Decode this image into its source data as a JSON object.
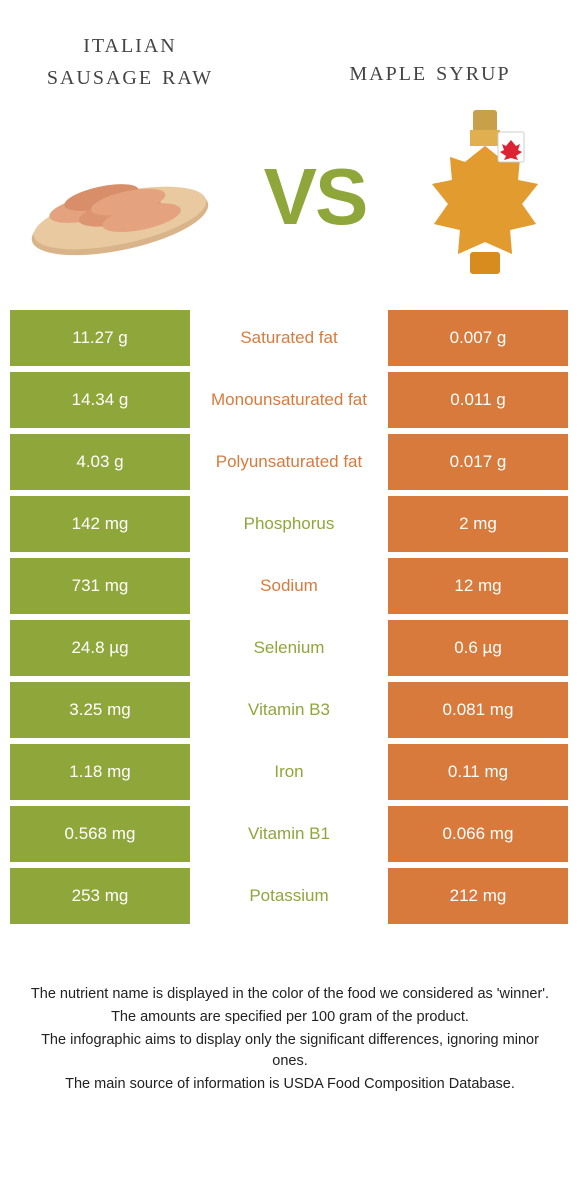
{
  "colors": {
    "leftFood": "#8fa63b",
    "rightFood": "#d87a3c",
    "vs": "#8fa63b",
    "text": "#333333",
    "footnote": "#222222",
    "background": "#ffffff"
  },
  "leftFood": {
    "title": "italian sausage raw"
  },
  "rightFood": {
    "title": "maple syrup"
  },
  "vsLabel": "VS",
  "rows": [
    {
      "left": "11.27 g",
      "name": "Saturated fat",
      "right": "0.007 g",
      "winner": "right"
    },
    {
      "left": "14.34 g",
      "name": "Monounsaturated fat",
      "right": "0.011 g",
      "winner": "right"
    },
    {
      "left": "4.03 g",
      "name": "Polyunsaturated fat",
      "right": "0.017 g",
      "winner": "right"
    },
    {
      "left": "142 mg",
      "name": "Phosphorus",
      "right": "2 mg",
      "winner": "left"
    },
    {
      "left": "731 mg",
      "name": "Sodium",
      "right": "12 mg",
      "winner": "right"
    },
    {
      "left": "24.8 µg",
      "name": "Selenium",
      "right": "0.6 µg",
      "winner": "left"
    },
    {
      "left": "3.25 mg",
      "name": "Vitamin B3",
      "right": "0.081 mg",
      "winner": "left"
    },
    {
      "left": "1.18 mg",
      "name": "Iron",
      "right": "0.11 mg",
      "winner": "left"
    },
    {
      "left": "0.568 mg",
      "name": "Vitamin B1",
      "right": "0.066 mg",
      "winner": "left"
    },
    {
      "left": "253 mg",
      "name": "Potassium",
      "right": "212 mg",
      "winner": "left"
    }
  ],
  "footnotes": [
    "The nutrient name is displayed in the color of the food we considered as 'winner'.",
    "The amounts are specified per 100 gram of the product.",
    "The infographic aims to display only the significant differences, ignoring minor ones.",
    "The main source of information is USDA Food Composition Database."
  ]
}
